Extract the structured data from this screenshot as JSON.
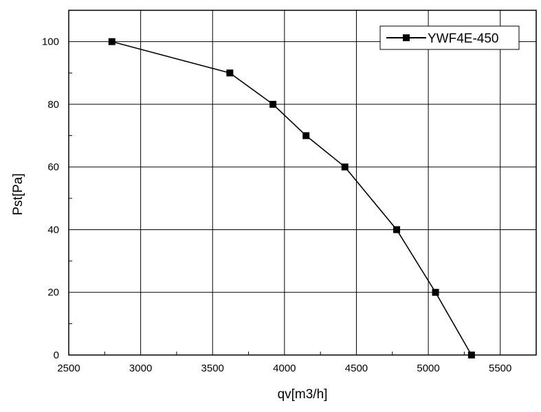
{
  "chart_data": {
    "type": "line",
    "title": "",
    "xlabel": "qv[m3/h]",
    "ylabel": "Pst[Pa]",
    "xlim": [
      2500,
      5750
    ],
    "ylim": [
      0,
      110
    ],
    "x_ticks": [
      2500,
      3000,
      3500,
      4000,
      4500,
      5000,
      5500
    ],
    "y_ticks": [
      0,
      20,
      40,
      60,
      80,
      100
    ],
    "x_tick_labels": [
      "2500",
      "3000",
      "3500",
      "4000",
      "4500",
      "5000",
      "5500"
    ],
    "y_tick_labels": [
      "0",
      "20",
      "40",
      "60",
      "80",
      "100"
    ],
    "grid": true,
    "legend": "top-right",
    "series": [
      {
        "name": "YWF4E-450",
        "marker": "square",
        "color": "#000000",
        "x": [
          2800,
          3620,
          3920,
          4150,
          4420,
          4780,
          5050,
          5300
        ],
        "y": [
          100,
          90,
          80,
          70,
          60,
          40,
          20,
          0
        ]
      }
    ]
  }
}
